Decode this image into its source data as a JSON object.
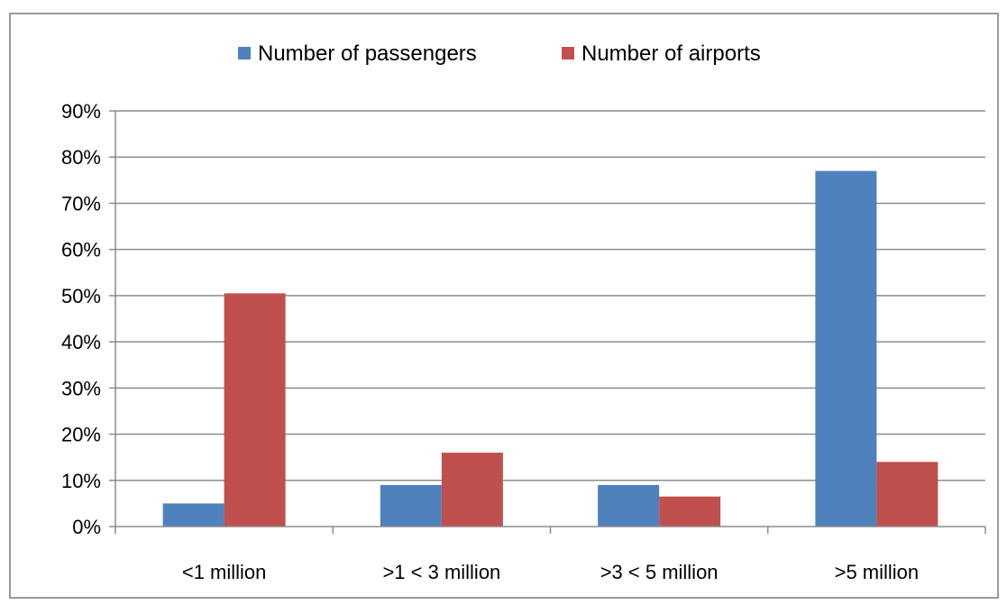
{
  "chart_data": {
    "type": "bar",
    "title": "",
    "xlabel": "",
    "ylabel": "",
    "categories": [
      "<1 million",
      ">1 < 3 million",
      ">3 < 5 million",
      ">5 million"
    ],
    "series": [
      {
        "name": "Number of passengers",
        "color": "#4F81BD",
        "values": [
          5,
          9,
          9,
          77
        ]
      },
      {
        "name": "Number of airports",
        "color": "#C0504D",
        "values": [
          50.5,
          16,
          6.5,
          14
        ]
      }
    ],
    "ylim": [
      0,
      90
    ],
    "yticks": [
      0,
      10,
      20,
      30,
      40,
      50,
      60,
      70,
      80,
      90
    ],
    "ytick_labels": [
      "0%",
      "10%",
      "20%",
      "30%",
      "40%",
      "50%",
      "60%",
      "70%",
      "80%",
      "90%"
    ],
    "grid": true,
    "legend_position": "top"
  }
}
